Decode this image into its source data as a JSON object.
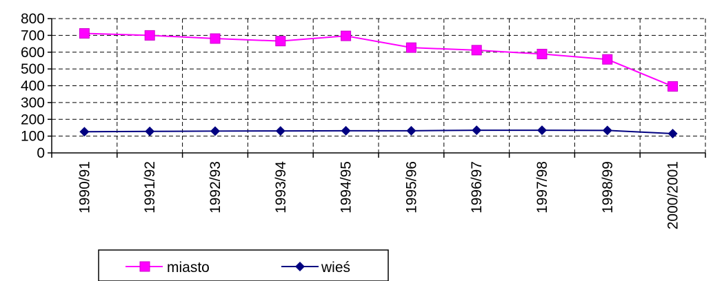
{
  "chart_data": {
    "type": "line",
    "categories": [
      "1990/91",
      "1991/92",
      "1992/93",
      "1993/94",
      "1994/95",
      "1995/96",
      "1996/97",
      "1997/98",
      "1998/99",
      "2000/2001"
    ],
    "series": [
      {
        "name": "miasto",
        "color": "#ff00ff",
        "marker": "square",
        "values": [
          712,
          700,
          681,
          666,
          697,
          627,
          612,
          589,
          557,
          396
        ]
      },
      {
        "name": "wieś",
        "color": "#000080",
        "marker": "diamond",
        "values": [
          126,
          128,
          130,
          131,
          132,
          132,
          135,
          135,
          134,
          115
        ]
      }
    ],
    "ylim": [
      0,
      800
    ],
    "yticks": [
      0,
      100,
      200,
      300,
      400,
      500,
      600,
      700,
      800
    ],
    "grid": "dashed",
    "legend_position": "bottom"
  }
}
